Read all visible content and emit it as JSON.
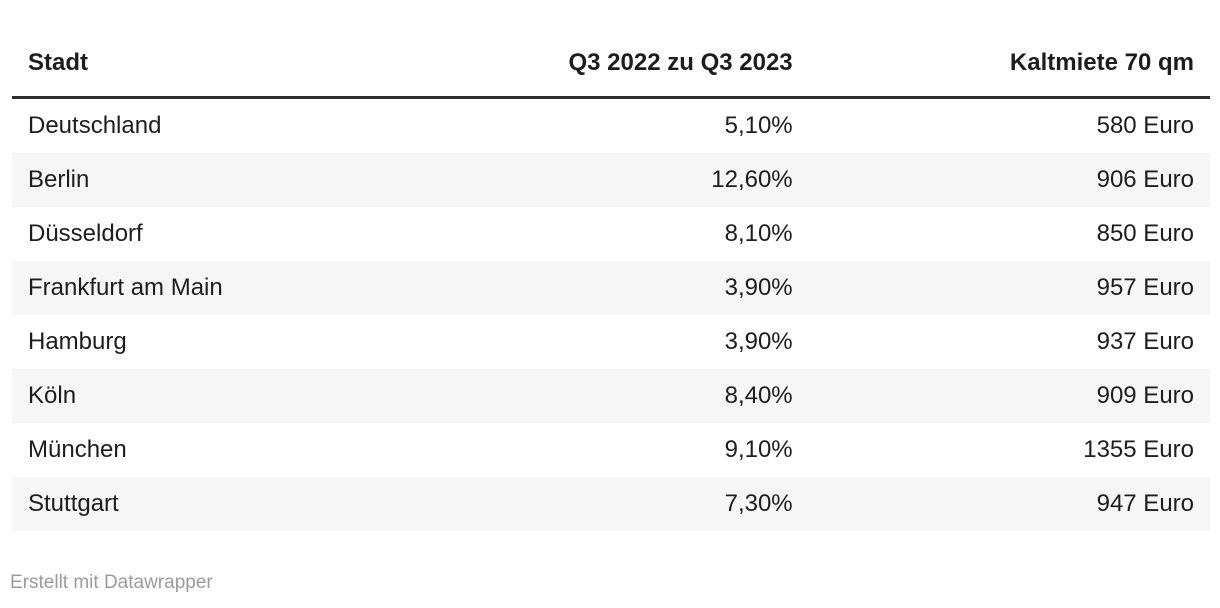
{
  "chart_data": {
    "type": "table",
    "columns": [
      {
        "label": "Stadt",
        "align": "left"
      },
      {
        "label": "Q3 2022 zu Q3 2023",
        "align": "right"
      },
      {
        "label": "Kaltmiete 70 qm",
        "align": "right"
      }
    ],
    "rows": [
      [
        "Deutschland",
        "5,10%",
        "580 Euro"
      ],
      [
        "Berlin",
        "12,60%",
        "906 Euro"
      ],
      [
        "Düsseldorf",
        "8,10%",
        "850 Euro"
      ],
      [
        "Frankfurt am Main",
        "3,90%",
        "957 Euro"
      ],
      [
        "Hamburg",
        "3,90%",
        "937 Euro"
      ],
      [
        "Köln",
        "8,40%",
        "909 Euro"
      ],
      [
        "München",
        "9,10%",
        "1355 Euro"
      ],
      [
        "Stuttgart",
        "7,30%",
        "947 Euro"
      ]
    ],
    "layout_hints": {
      "striped_rows": true,
      "header_rule": true,
      "grid": false
    }
  },
  "footer": {
    "attribution": "Erstellt mit Datawrapper"
  },
  "colors": {
    "text": "#1d1d1d",
    "rule": "#2e2e2e",
    "stripe": "#f6f6f6",
    "muted": "#9b9b9b",
    "background": "#ffffff"
  }
}
